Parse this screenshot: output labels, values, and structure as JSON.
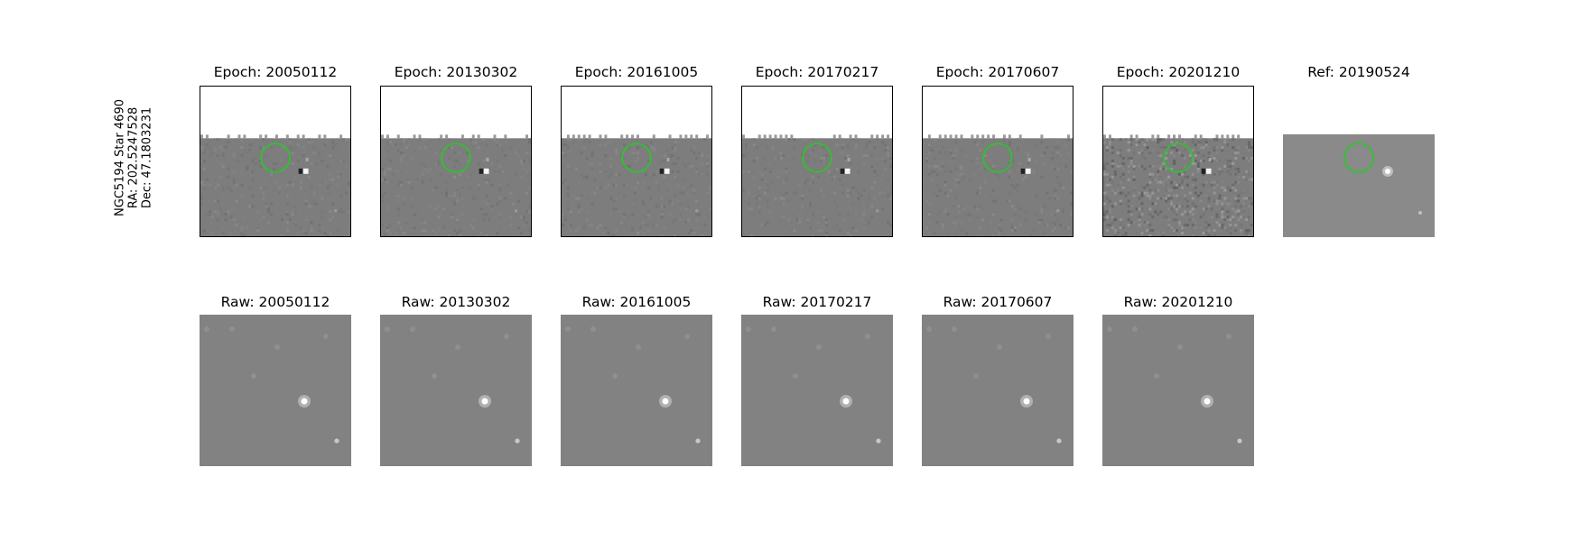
{
  "side_label": {
    "line1": "NGC5194 Star 4690",
    "line2": "RA: 202.5247528",
    "line3": "Dec: 47.1803231"
  },
  "colors": {
    "circle": "#22cc22",
    "field": "#7d7d7d",
    "raw_field": "#828282"
  },
  "top_row": [
    {
      "title": "Epoch: 20050112"
    },
    {
      "title": "Epoch: 20130302"
    },
    {
      "title": "Epoch: 20161005"
    },
    {
      "title": "Epoch: 20170217"
    },
    {
      "title": "Epoch: 20170607"
    },
    {
      "title": "Epoch: 20201210"
    },
    {
      "title": "Ref: 20190524"
    }
  ],
  "bottom_row": [
    {
      "title": "Raw: 20050112"
    },
    {
      "title": "Raw: 20130302"
    },
    {
      "title": "Raw: 20161005"
    },
    {
      "title": "Raw: 20170217"
    },
    {
      "title": "Raw: 20170607"
    },
    {
      "title": "Raw: 20201210"
    }
  ]
}
